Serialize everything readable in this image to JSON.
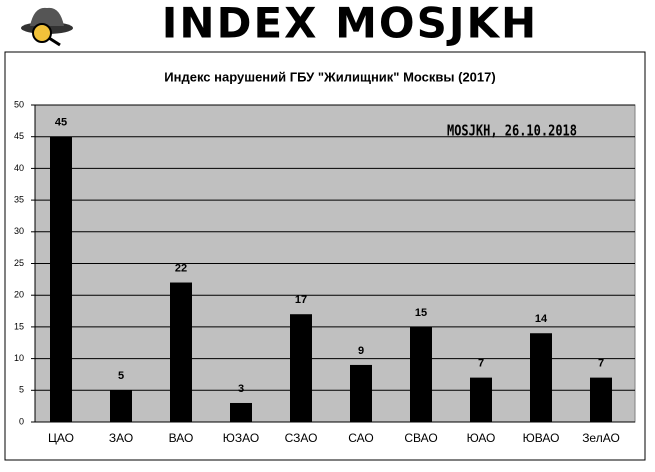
{
  "header": {
    "title": "INDEX MOSJKH"
  },
  "chart_data": {
    "type": "bar",
    "title": "Индекс нарушений ГБУ \"Жилищник\" Москвы (2017)",
    "annotation": "MOSJKH, 26.10.2018",
    "categories": [
      "ЦАО",
      "ЗАО",
      "ВАО",
      "ЮЗАО",
      "СЗАО",
      "САО",
      "СВАО",
      "ЮАО",
      "ЮВАО",
      "ЗелАО"
    ],
    "values": [
      45,
      5,
      22,
      3,
      17,
      9,
      15,
      7,
      14,
      7
    ],
    "color": "#000000",
    "ylim": [
      0,
      50
    ],
    "yticks": [
      0,
      5,
      10,
      15,
      20,
      25,
      30,
      35,
      40,
      45,
      50
    ],
    "grid": true
  }
}
